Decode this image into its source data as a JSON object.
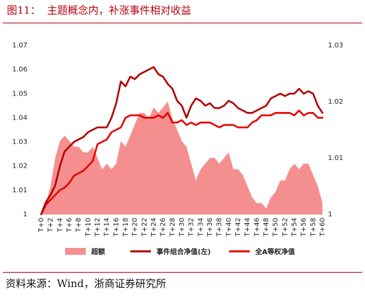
{
  "figure": {
    "title": "图11：  主题概念内，补涨事件相对收益",
    "source": "资料来源：Wind，浙商证券研究所"
  },
  "colors": {
    "title": "#b8000e",
    "area": "#f58f8f",
    "event_line": "#b30000",
    "all_a_line": "#e60000"
  },
  "chart_data": {
    "type": "line",
    "x": [
      "T+0",
      "T+1",
      "T+2",
      "T+3",
      "T+4",
      "T+5",
      "T+6",
      "T+7",
      "T+8",
      "T+9",
      "T+10",
      "T+11",
      "T+12",
      "T+13",
      "T+14",
      "T+15",
      "T+16",
      "T+17",
      "T+18",
      "T+19",
      "T+20",
      "T+21",
      "T+22",
      "T+23",
      "T+24",
      "T+25",
      "T+26",
      "T+27",
      "T+28",
      "T+29",
      "T+30",
      "T+31",
      "T+32",
      "T+33",
      "T+34",
      "T+35",
      "T+36",
      "T+37",
      "T+38",
      "T+39",
      "T+40",
      "T+41",
      "T+42",
      "T+43",
      "T+44",
      "T+45",
      "T+46",
      "T+47",
      "T+48",
      "T+49",
      "T+50",
      "T+51",
      "T+52",
      "T+53",
      "T+54",
      "T+55",
      "T+56",
      "T+57",
      "T+58",
      "T+59",
      "T+60"
    ],
    "xtick_labels": [
      "T+0",
      "T+2",
      "T+4",
      "T+6",
      "T+8",
      "T+10",
      "T+12",
      "T+14",
      "T+16",
      "T+18",
      "T+20",
      "T+22",
      "T+24",
      "T+26",
      "T+28",
      "T+30",
      "T+32",
      "T+34",
      "T+36",
      "T+38",
      "T+40",
      "T+42",
      "T+44",
      "T+46",
      "T+48",
      "T+50",
      "T+52",
      "T+54",
      "T+56",
      "T+58",
      "T+60"
    ],
    "y_left": {
      "ylim": [
        1.0,
        1.07
      ],
      "ticks": [
        "1",
        "1.01",
        "1.02",
        "1.03",
        "1.04",
        "1.05",
        "1.06",
        "1.07"
      ]
    },
    "y_right": {
      "ylim": [
        1.0,
        1.03
      ],
      "ticks": [
        "1",
        "1.01",
        "1.02",
        "1.03"
      ]
    },
    "legend_position": "bottom",
    "series": [
      {
        "name": "超额",
        "kind": "area",
        "axis": "right",
        "values": [
          1.0,
          1.002,
          1.005,
          1.01,
          1.013,
          1.014,
          1.013,
          1.012,
          1.012,
          1.011,
          1.011,
          1.012,
          1.01,
          1.008,
          1.009,
          1.008,
          1.009,
          1.013,
          1.012,
          1.014,
          1.016,
          1.018,
          1.018,
          1.017,
          1.019,
          1.018,
          1.019,
          1.02,
          1.017,
          1.015,
          1.013,
          1.012,
          1.009,
          1.006,
          1.008,
          1.009,
          1.01,
          1.01,
          1.009,
          1.01,
          1.011,
          1.008,
          1.008,
          1.007,
          1.005,
          1.003,
          1.002,
          1.002,
          1.001,
          1.003,
          1.004,
          1.006,
          1.006,
          1.008,
          1.009,
          1.008,
          1.009,
          1.009,
          1.007,
          1.005,
          1.002
        ]
      },
      {
        "name": "事件组合净值(左)",
        "kind": "line",
        "axis": "left",
        "values": [
          1.0,
          1.005,
          1.008,
          1.012,
          1.02,
          1.026,
          1.028,
          1.03,
          1.031,
          1.032,
          1.034,
          1.035,
          1.036,
          1.036,
          1.036,
          1.04,
          1.046,
          1.055,
          1.053,
          1.057,
          1.056,
          1.058,
          1.059,
          1.06,
          1.061,
          1.058,
          1.057,
          1.054,
          1.052,
          1.047,
          1.045,
          1.04,
          1.045,
          1.048,
          1.047,
          1.045,
          1.046,
          1.044,
          1.044,
          1.045,
          1.047,
          1.046,
          1.044,
          1.043,
          1.042,
          1.042,
          1.043,
          1.044,
          1.045,
          1.048,
          1.049,
          1.05,
          1.049,
          1.05,
          1.05,
          1.052,
          1.05,
          1.051,
          1.05,
          1.045,
          1.042
        ]
      },
      {
        "name": "全A等权净值",
        "kind": "line",
        "axis": "left",
        "values": [
          1.0,
          1.004,
          1.006,
          1.008,
          1.01,
          1.011,
          1.013,
          1.016,
          1.017,
          1.018,
          1.02,
          1.022,
          1.029,
          1.03,
          1.031,
          1.034,
          1.035,
          1.036,
          1.04,
          1.041,
          1.041,
          1.041,
          1.04,
          1.04,
          1.04,
          1.041,
          1.04,
          1.042,
          1.038,
          1.038,
          1.039,
          1.037,
          1.038,
          1.037,
          1.038,
          1.038,
          1.038,
          1.037,
          1.036,
          1.037,
          1.037,
          1.037,
          1.036,
          1.036,
          1.036,
          1.038,
          1.039,
          1.041,
          1.041,
          1.041,
          1.042,
          1.042,
          1.042,
          1.042,
          1.041,
          1.043,
          1.041,
          1.042,
          1.042,
          1.04,
          1.04
        ]
      }
    ]
  }
}
